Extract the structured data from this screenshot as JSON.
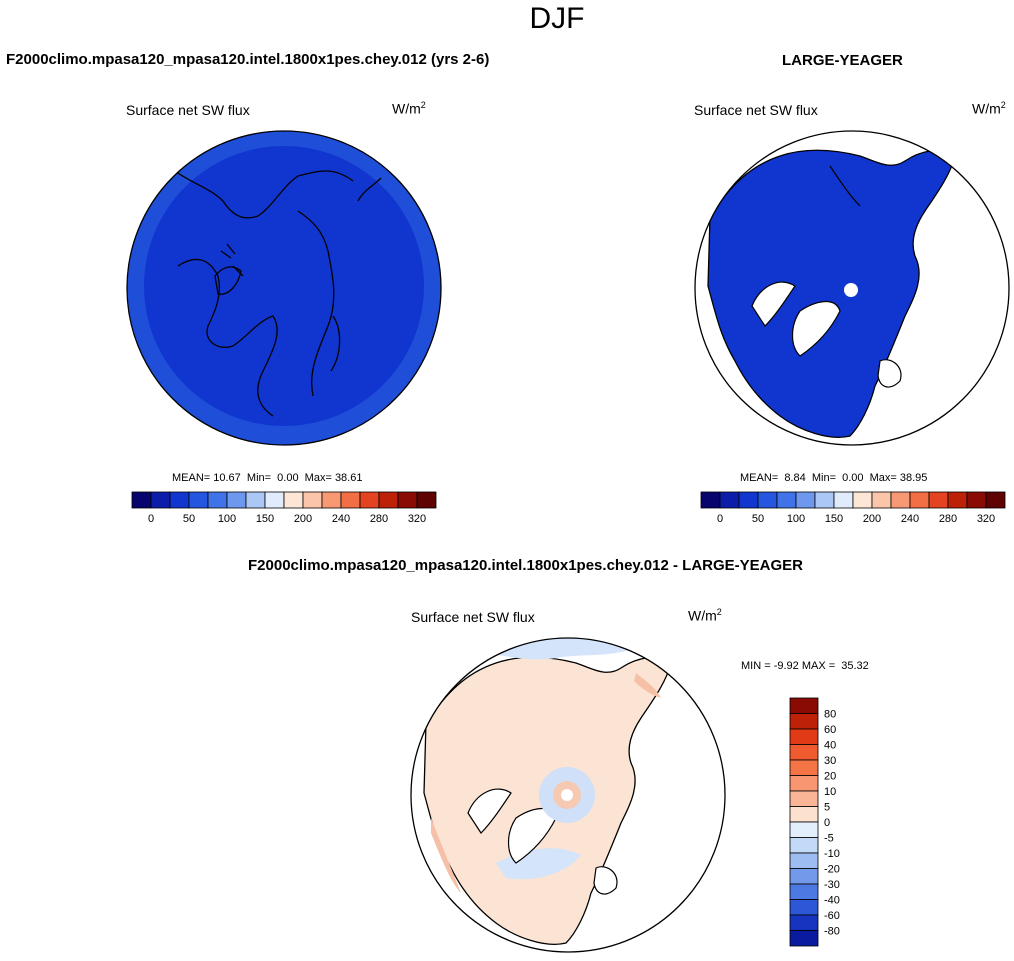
{
  "title": "DJF",
  "panels": {
    "test": {
      "title": "F2000climo.mpasa120_mpasa120.intel.1800x1pes.chey.012 (yrs 2-6)",
      "variable": "Surface net SW flux",
      "units_base": "W/m",
      "units_exp": "2",
      "stats": "MEAN= 10.67  Min=  0.00  Max= 38.61"
    },
    "ref": {
      "title": "LARGE-YEAGER",
      "variable": "Surface net SW flux",
      "units_base": "W/m",
      "units_exp": "2",
      "stats": "MEAN=  8.84  Min=  0.00  Max= 38.95"
    },
    "diff": {
      "title": "F2000climo.mpasa120_mpasa120.intel.1800x1pes.chey.012 - LARGE-YEAGER",
      "variable": "Surface net SW flux",
      "units_base": "W/m",
      "units_exp": "2",
      "stats": "MIN = -9.92 MAX =  35.32"
    }
  },
  "colors": {
    "field_fill": "#1036cf",
    "field_rim": "#1f4fd8",
    "diff_ocean": "#d3e4fb",
    "diff_land": "#fce4d4",
    "diff_pos": "#f6c0a6",
    "diff_neg": "#b9d3f6"
  },
  "chart_data": [
    {
      "type": "heatmap",
      "projection": "north-polar-stereographic",
      "title": "F2000climo.mpasa120_mpasa120.intel.1800x1pes.chey.012 (yrs 2-6)",
      "variable": "Surface net SW flux",
      "mean": 10.67,
      "min": 0.0,
      "max": 38.61,
      "colorbar": {
        "orientation": "horizontal",
        "levels": [
          "0",
          "50",
          "100",
          "150",
          "200",
          "240",
          "280",
          "320"
        ],
        "colors": [
          "#08046e",
          "#0c1ea9",
          "#1036cf",
          "#2556e0",
          "#3f73e7",
          "#6e98ee",
          "#aac7f6",
          "#e0ecfc",
          "#fde6d6",
          "#fbc5a9",
          "#f79a74",
          "#f26e44",
          "#e34320",
          "#bd2208",
          "#8a0a04",
          "#5e0202"
        ]
      }
    },
    {
      "type": "heatmap",
      "projection": "north-polar-stereographic",
      "title": "LARGE-YEAGER",
      "variable": "Surface net SW flux",
      "mean": 8.84,
      "min": 0.0,
      "max": 38.95,
      "colorbar": {
        "orientation": "horizontal",
        "levels": [
          "0",
          "50",
          "100",
          "150",
          "200",
          "240",
          "280",
          "320"
        ],
        "colors": [
          "#08046e",
          "#0c1ea9",
          "#1036cf",
          "#2556e0",
          "#3f73e7",
          "#6e98ee",
          "#aac7f6",
          "#e0ecfc",
          "#fde6d6",
          "#fbc5a9",
          "#f79a74",
          "#f26e44",
          "#e34320",
          "#bd2208",
          "#8a0a04",
          "#5e0202"
        ]
      }
    },
    {
      "type": "heatmap",
      "projection": "north-polar-stereographic",
      "title": "F2000climo.mpasa120_mpasa120.intel.1800x1pes.chey.012 - LARGE-YEAGER",
      "variable": "Surface net SW flux",
      "min": -9.92,
      "max": 35.32,
      "colorbar": {
        "orientation": "vertical",
        "levels": [
          "80",
          "60",
          "40",
          "30",
          "20",
          "10",
          "5",
          "0",
          "-5",
          "-10",
          "-20",
          "-30",
          "-40",
          "-60",
          "-80"
        ],
        "colors": [
          "#8a0a04",
          "#bd2208",
          "#e03a16",
          "#ef5a2e",
          "#f47446",
          "#f79670",
          "#f9b595",
          "#fce1ce",
          "#e2eefc",
          "#c3d9f8",
          "#9cbcf2",
          "#7399ea",
          "#4d79e2",
          "#2c57d6",
          "#1734c0",
          "#0a1ba0"
        ]
      }
    }
  ]
}
